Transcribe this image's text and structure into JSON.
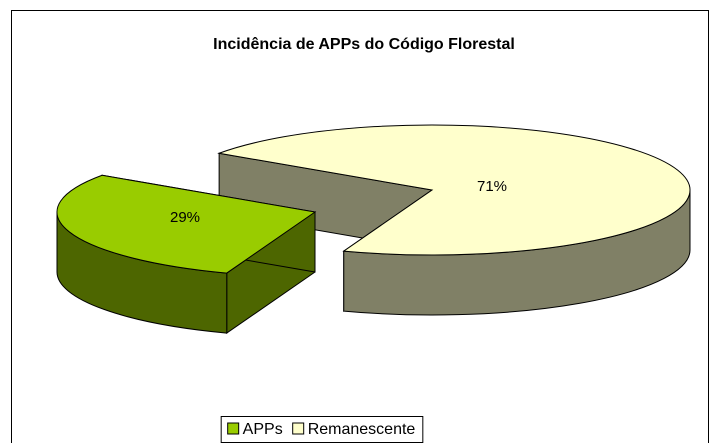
{
  "chart_data": {
    "type": "pie",
    "title": "Incidência de APPs do Código Florestal",
    "categories": [
      "APPs",
      "Remanescente"
    ],
    "values": [
      29,
      71
    ],
    "value_labels": [
      "29%",
      "71%"
    ],
    "colors": [
      "#99CC00",
      "#FFFFCC"
    ],
    "side_colors": [
      "#4D6600",
      "#808066"
    ],
    "legend": "bottom"
  }
}
